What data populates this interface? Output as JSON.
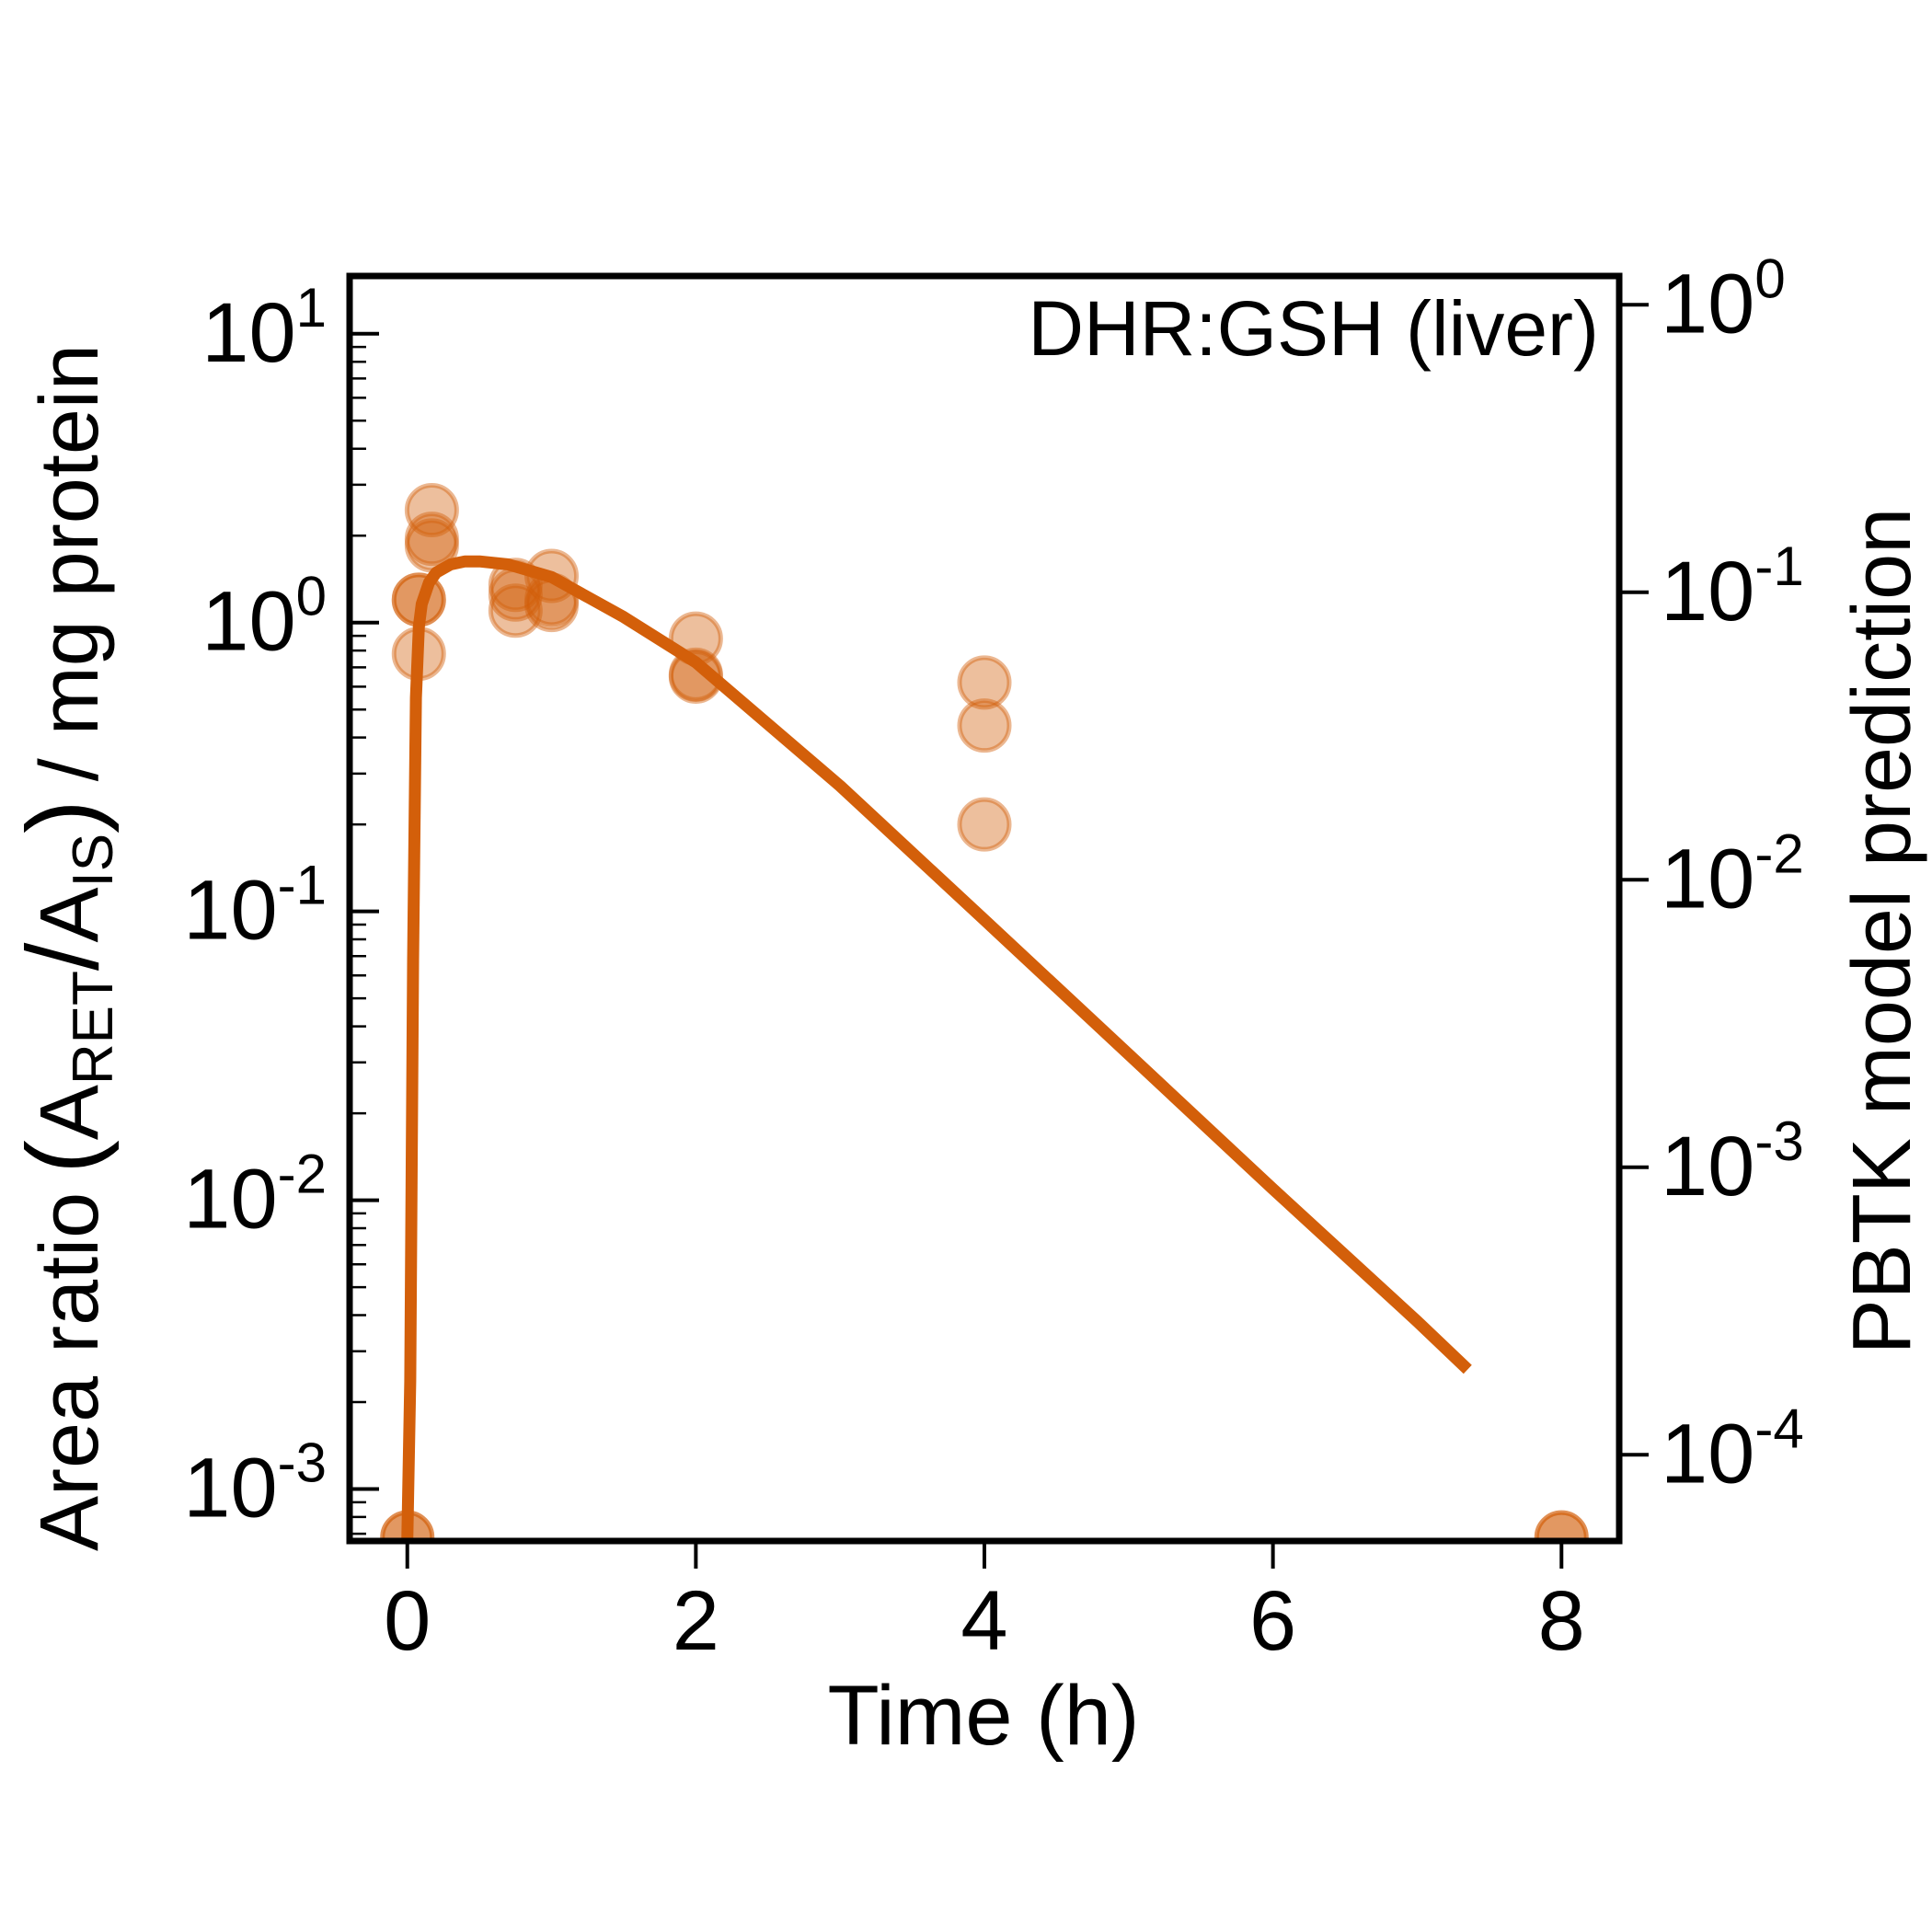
{
  "chart_data": {
    "type": "scatter",
    "annotation": "DHR:GSH (liver)",
    "xlabel": "Time (h)",
    "ylabel": {
      "prefix": "Area ratio",
      "open_paren": "(",
      "a1": "A",
      "sub1": "RET",
      "slash": "/",
      "a2": "A",
      "sub2": "IS",
      "close_paren": ")",
      "suffix": "/ mg protein"
    },
    "y2label": "PBTK model prediction",
    "xlim": [
      -0.4,
      8.4
    ],
    "ylim_log10": [
      -3.18,
      1.2
    ],
    "y2lim_log10": [
      -4.3,
      0.1
    ],
    "yscale": "log",
    "y2scale": "log",
    "x_ticks": [
      {
        "value": 0,
        "label": "0"
      },
      {
        "value": 2,
        "label": "2"
      },
      {
        "value": 4,
        "label": "4"
      },
      {
        "value": 6,
        "label": "6"
      },
      {
        "value": 8,
        "label": "8"
      }
    ],
    "y_ticks": [
      {
        "exp": 1,
        "base": "10",
        "sup": "1"
      },
      {
        "exp": 0,
        "base": "10",
        "sup": "0"
      },
      {
        "exp": -1,
        "base": "10",
        "sup": "-1"
      },
      {
        "exp": -2,
        "base": "10",
        "sup": "-2"
      },
      {
        "exp": -3,
        "base": "10",
        "sup": "-3"
      }
    ],
    "y2_ticks": [
      {
        "exp": 0,
        "base": "10",
        "sup": "0"
      },
      {
        "exp": -1,
        "base": "10",
        "sup": "-1"
      },
      {
        "exp": -2,
        "base": "10",
        "sup": "-2"
      },
      {
        "exp": -3,
        "base": "10",
        "sup": "-3"
      },
      {
        "exp": -4,
        "base": "10",
        "sup": "-4"
      }
    ],
    "color": "#d35f0a",
    "points": [
      {
        "x": 0,
        "y": 0.00068
      },
      {
        "x": 0,
        "y": 0.00068
      },
      {
        "x": 0.08,
        "y": 1.2
      },
      {
        "x": 0.08,
        "y": 0.78
      },
      {
        "x": 0.08,
        "y": 1.2
      },
      {
        "x": 0.17,
        "y": 2.45
      },
      {
        "x": 0.17,
        "y": 1.85
      },
      {
        "x": 0.17,
        "y": 1.95
      },
      {
        "x": 0.75,
        "y": 1.35
      },
      {
        "x": 0.75,
        "y": 1.1
      },
      {
        "x": 0.75,
        "y": 1.25
      },
      {
        "x": 1.0,
        "y": 1.45
      },
      {
        "x": 1.0,
        "y": 1.15
      },
      {
        "x": 1.0,
        "y": 1.2
      },
      {
        "x": 2.0,
        "y": 0.88
      },
      {
        "x": 2.0,
        "y": 0.66
      },
      {
        "x": 2.0,
        "y": 0.65
      },
      {
        "x": 4.0,
        "y": 0.62
      },
      {
        "x": 4.0,
        "y": 0.44
      },
      {
        "x": 4.0,
        "y": 0.2
      },
      {
        "x": 8.0,
        "y": 0.00068
      },
      {
        "x": 8.0,
        "y": 0.00068
      }
    ],
    "series": [
      {
        "axis": "right",
        "x": [
          0.0,
          0.02,
          0.04,
          0.06,
          0.08,
          0.1,
          0.15,
          0.2,
          0.3,
          0.4,
          0.5,
          0.7,
          1.0,
          1.5,
          2.0,
          3.0,
          4.0,
          5.0,
          6.0,
          7.0,
          7.35
        ],
        "y": [
          5e-05,
          0.00018,
          0.0052,
          0.043,
          0.076,
          0.091,
          0.108,
          0.117,
          0.125,
          0.128,
          0.128,
          0.125,
          0.113,
          0.082,
          0.057,
          0.0212,
          0.00725,
          0.00247,
          0.00084,
          0.000291,
          0.000198
        ]
      }
    ]
  }
}
